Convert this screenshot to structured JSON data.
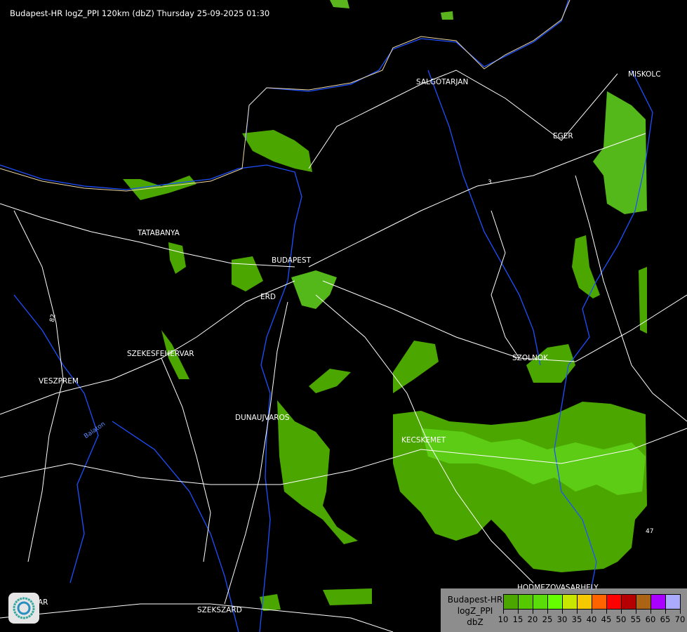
{
  "title": "Budapest-HR logZ_PPI 120km (dbZ) Thursday 25-09-2025 01:30",
  "cities": [
    {
      "name": "SALGOTARJAN"
    },
    {
      "name": "EGER"
    },
    {
      "name": "MISKOLC"
    },
    {
      "name": "TATABANYA"
    },
    {
      "name": "BUDAPEST"
    },
    {
      "name": "ERD"
    },
    {
      "name": "SZEKESFEHERVAR"
    },
    {
      "name": "VESZPREM"
    },
    {
      "name": "DUNAUJVAROS"
    },
    {
      "name": "KECSKEMET"
    },
    {
      "name": "SZOLNOK"
    },
    {
      "name": "HODMEZOVASARHELY"
    },
    {
      "name": "SZEKSZARD"
    },
    {
      "name": "AR"
    }
  ],
  "road_labels": [
    "82",
    "3",
    "47",
    "Balaton"
  ],
  "legend": {
    "station": "Budapest-HR",
    "product": "logZ_PPI",
    "unit": "dbZ",
    "ticks": [
      "10",
      "15",
      "20",
      "25",
      "30",
      "35",
      "40",
      "45",
      "50",
      "55",
      "60",
      "65",
      "70"
    ],
    "colors": [
      "#4ca600",
      "#55c800",
      "#5adc0a",
      "#66ff00",
      "#c8e600",
      "#f5c800",
      "#ff6400",
      "#ff0000",
      "#b40000",
      "#aa6414",
      "#aa00ff",
      "#aaaaff"
    ]
  },
  "colors": {
    "background": "#000000",
    "borders": "#ffffff",
    "rivers": "#1e50ff",
    "echo_light": "#5ab41e",
    "echo_mid": "#4ca600",
    "echo_bright": "#66e600"
  },
  "logo": "weather-service-swirl-logo"
}
